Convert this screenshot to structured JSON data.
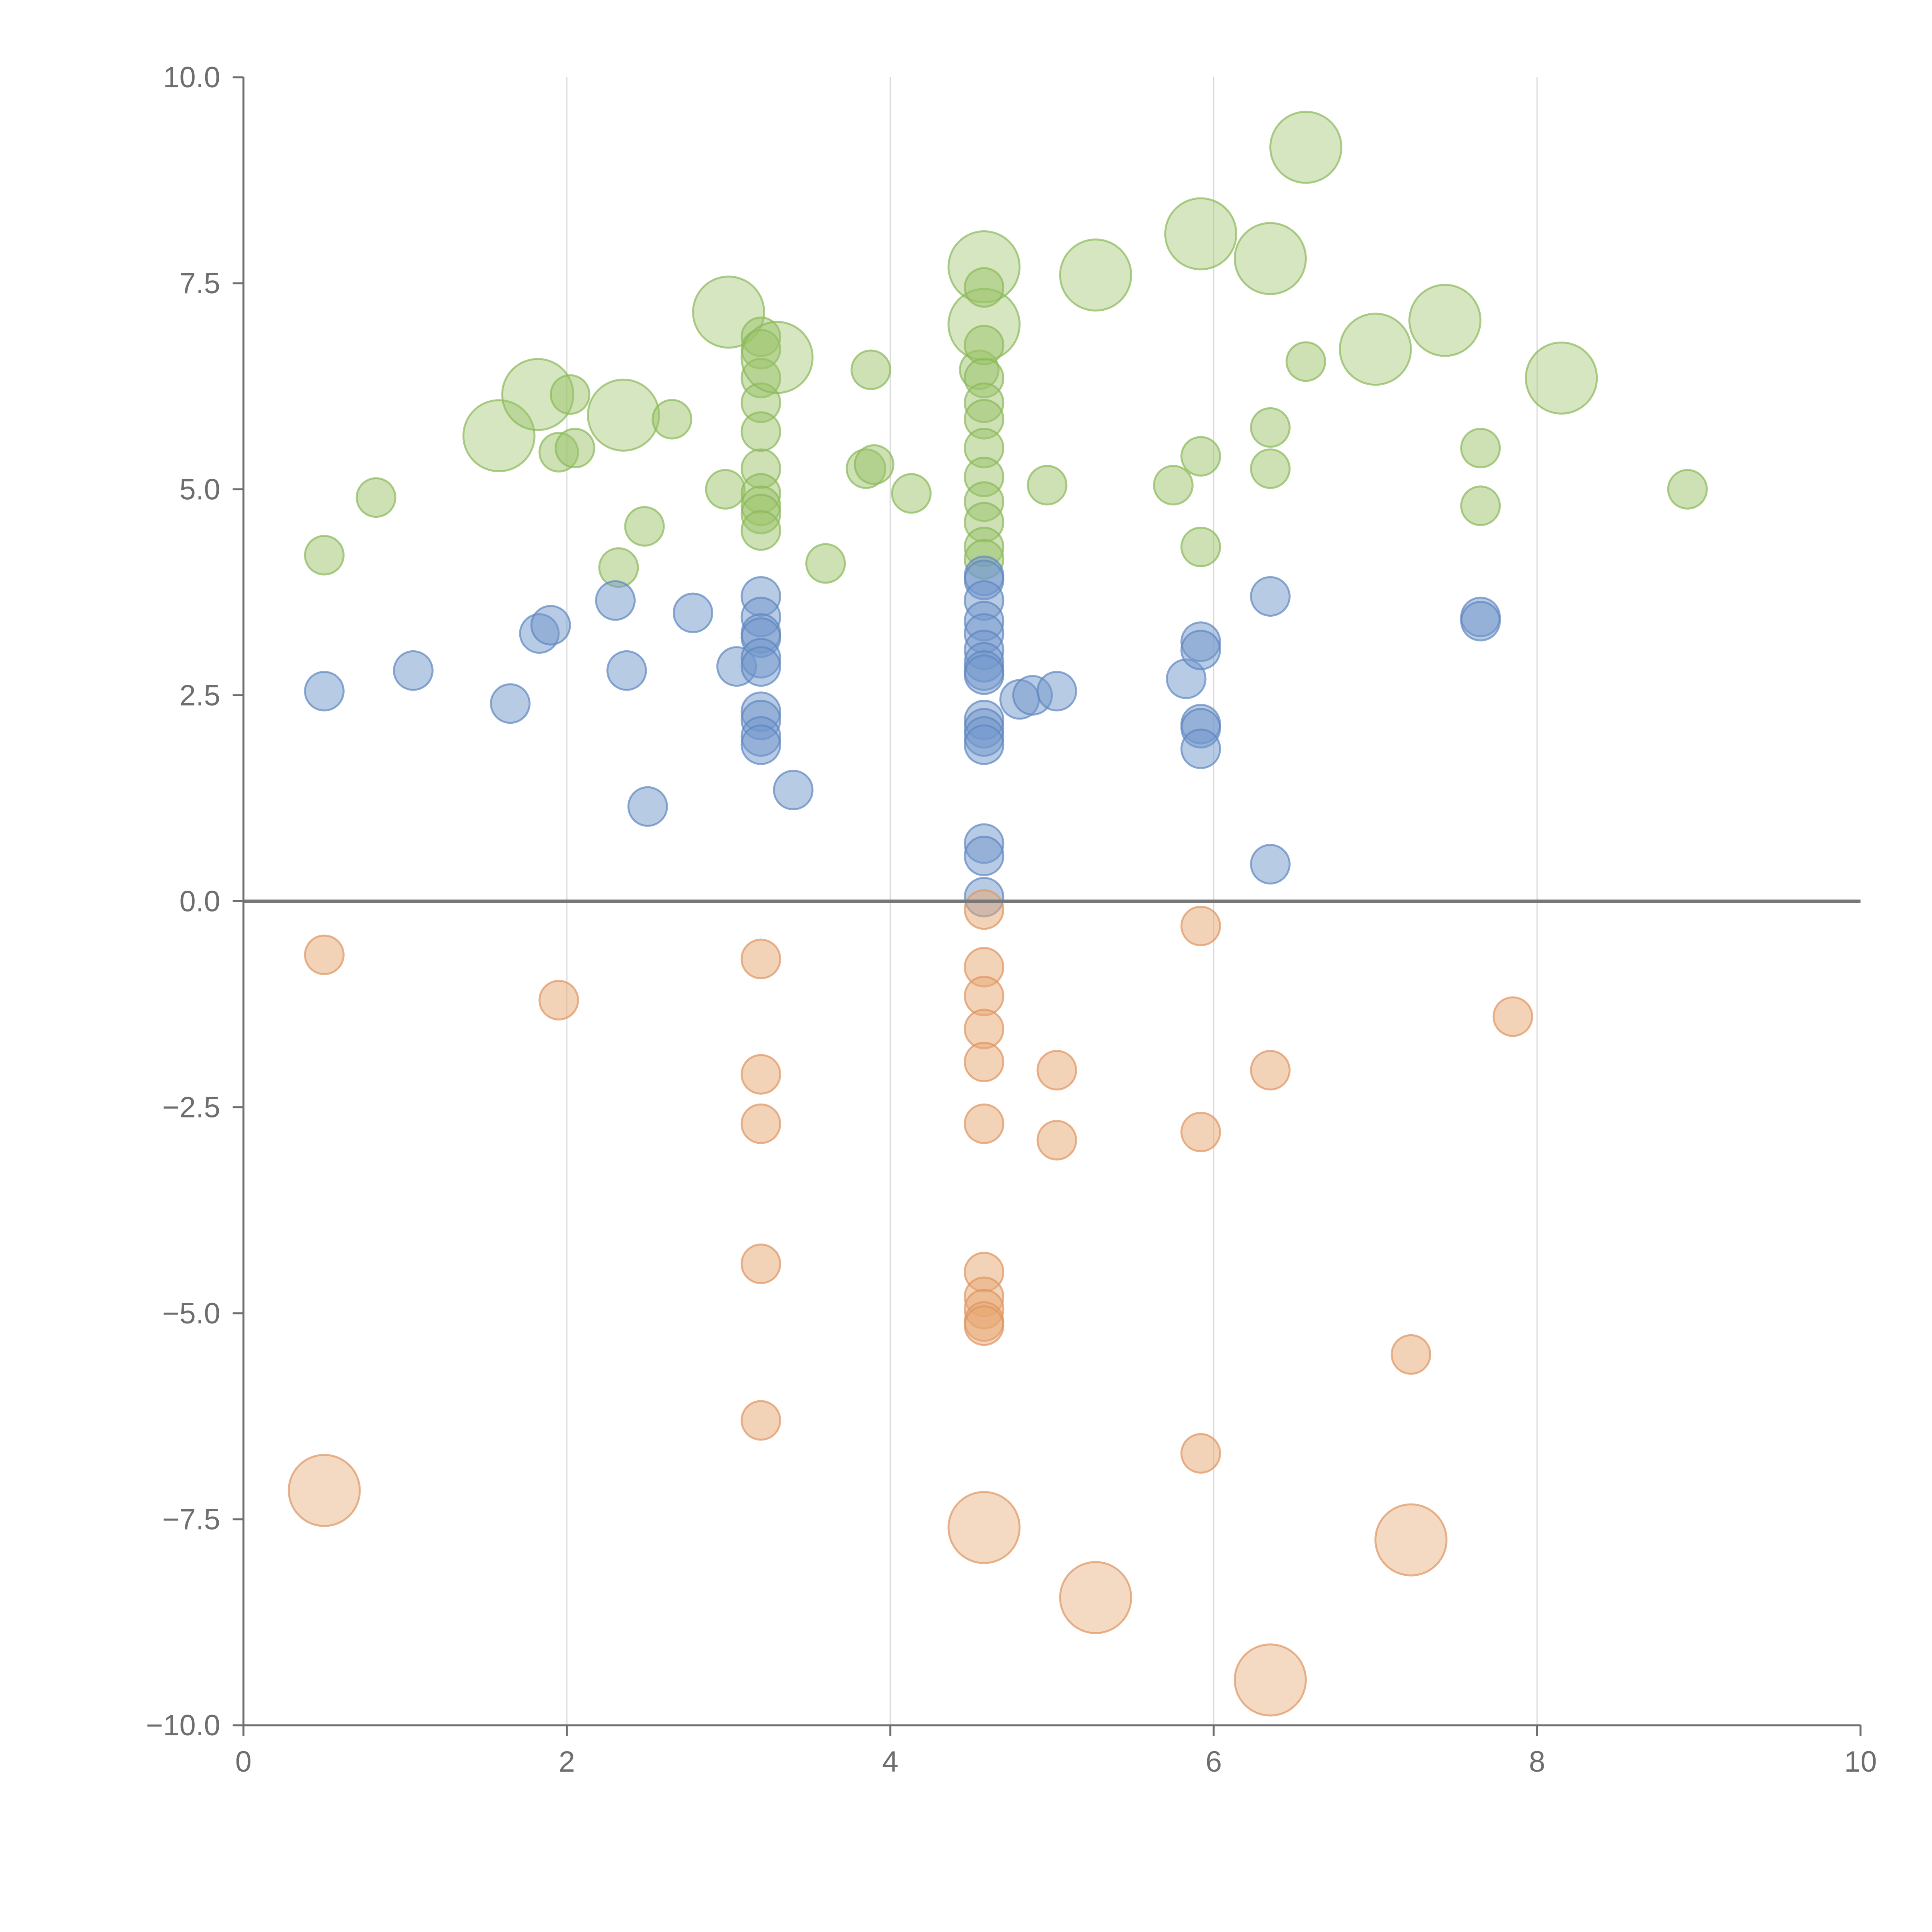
{
  "chart_data": {
    "type": "scatter",
    "variant": "bubble",
    "title": "",
    "xlabel": "",
    "ylabel": "",
    "xlim": [
      0,
      10
    ],
    "ylim": [
      -10,
      10
    ],
    "x_ticks": [
      0,
      2,
      4,
      6,
      8,
      10
    ],
    "y_ticks": [
      10,
      7.5,
      5,
      2.5,
      0,
      -2.5,
      -5,
      -7.5,
      -10
    ],
    "x_tick_labels": [
      "0",
      "2",
      "4",
      "6",
      "8",
      "10"
    ],
    "y_tick_labels": [
      "10.0",
      "7.5",
      "5.0",
      "2.5",
      "0.0",
      "−2.5",
      "−5.0",
      "−7.5",
      "−10.0"
    ],
    "grid": "vertical",
    "zero_line": true,
    "series": [
      {
        "name": "green",
        "color": "#9cc46a",
        "stroke": "#8ab85a",
        "points": [
          {
            "x": 0.5,
            "y": 4.2,
            "s": 1
          },
          {
            "x": 0.82,
            "y": 4.9,
            "s": 1
          },
          {
            "x": 1.58,
            "y": 5.65,
            "s": 3
          },
          {
            "x": 1.82,
            "y": 6.15,
            "s": 3
          },
          {
            "x": 1.95,
            "y": 5.45,
            "s": 1
          },
          {
            "x": 2.02,
            "y": 6.15,
            "s": 1
          },
          {
            "x": 2.05,
            "y": 5.5,
            "s": 1
          },
          {
            "x": 2.32,
            "y": 4.05,
            "s": 1
          },
          {
            "x": 2.35,
            "y": 5.9,
            "s": 3
          },
          {
            "x": 2.48,
            "y": 4.55,
            "s": 1
          },
          {
            "x": 2.65,
            "y": 5.85,
            "s": 1
          },
          {
            "x": 2.98,
            "y": 5.0,
            "s": 1
          },
          {
            "x": 3.0,
            "y": 7.15,
            "s": 3
          },
          {
            "x": 3.2,
            "y": 6.85,
            "s": 1
          },
          {
            "x": 3.2,
            "y": 6.7,
            "s": 1
          },
          {
            "x": 3.2,
            "y": 6.35,
            "s": 1
          },
          {
            "x": 3.2,
            "y": 6.05,
            "s": 1
          },
          {
            "x": 3.2,
            "y": 5.7,
            "s": 1
          },
          {
            "x": 3.2,
            "y": 5.25,
            "s": 1
          },
          {
            "x": 3.2,
            "y": 4.95,
            "s": 1
          },
          {
            "x": 3.2,
            "y": 4.8,
            "s": 1
          },
          {
            "x": 3.2,
            "y": 4.7,
            "s": 1
          },
          {
            "x": 3.2,
            "y": 4.5,
            "s": 1
          },
          {
            "x": 3.3,
            "y": 6.6,
            "s": 3
          },
          {
            "x": 3.6,
            "y": 4.1,
            "s": 1
          },
          {
            "x": 3.85,
            "y": 5.25,
            "s": 1
          },
          {
            "x": 3.88,
            "y": 6.45,
            "s": 1
          },
          {
            "x": 3.9,
            "y": 5.3,
            "s": 1
          },
          {
            "x": 4.13,
            "y": 4.95,
            "s": 1
          },
          {
            "x": 4.55,
            "y": 6.45,
            "s": 1
          },
          {
            "x": 4.58,
            "y": 7.7,
            "s": 3
          },
          {
            "x": 4.58,
            "y": 7.0,
            "s": 3
          },
          {
            "x": 4.58,
            "y": 7.45,
            "s": 1
          },
          {
            "x": 4.58,
            "y": 6.75,
            "s": 1
          },
          {
            "x": 4.58,
            "y": 6.35,
            "s": 1
          },
          {
            "x": 4.58,
            "y": 6.05,
            "s": 1
          },
          {
            "x": 4.58,
            "y": 5.85,
            "s": 1
          },
          {
            "x": 4.58,
            "y": 5.5,
            "s": 1
          },
          {
            "x": 4.58,
            "y": 5.15,
            "s": 1
          },
          {
            "x": 4.58,
            "y": 4.85,
            "s": 1
          },
          {
            "x": 4.58,
            "y": 4.6,
            "s": 1
          },
          {
            "x": 4.58,
            "y": 4.3,
            "s": 1
          },
          {
            "x": 4.58,
            "y": 4.15,
            "s": 1
          },
          {
            "x": 4.97,
            "y": 5.05,
            "s": 1
          },
          {
            "x": 5.27,
            "y": 7.6,
            "s": 3
          },
          {
            "x": 5.75,
            "y": 5.05,
            "s": 1
          },
          {
            "x": 5.92,
            "y": 8.1,
            "s": 3
          },
          {
            "x": 5.92,
            "y": 5.4,
            "s": 1
          },
          {
            "x": 5.92,
            "y": 4.3,
            "s": 1
          },
          {
            "x": 6.35,
            "y": 7.8,
            "s": 3
          },
          {
            "x": 6.35,
            "y": 5.75,
            "s": 1
          },
          {
            "x": 6.35,
            "y": 5.25,
            "s": 1
          },
          {
            "x": 6.57,
            "y": 9.15,
            "s": 3
          },
          {
            "x": 6.57,
            "y": 6.55,
            "s": 1
          },
          {
            "x": 7.0,
            "y": 6.7,
            "s": 3
          },
          {
            "x": 7.43,
            "y": 7.05,
            "s": 3
          },
          {
            "x": 7.65,
            "y": 5.5,
            "s": 1
          },
          {
            "x": 7.65,
            "y": 4.8,
            "s": 1
          },
          {
            "x": 8.15,
            "y": 6.35,
            "s": 3
          },
          {
            "x": 8.93,
            "y": 5.0,
            "s": 1
          }
        ]
      },
      {
        "name": "blue",
        "color": "#7297cc",
        "stroke": "#5f86c0",
        "points": [
          {
            "x": 0.5,
            "y": 2.55,
            "s": 1
          },
          {
            "x": 1.05,
            "y": 2.8,
            "s": 1
          },
          {
            "x": 1.65,
            "y": 2.4,
            "s": 1
          },
          {
            "x": 1.83,
            "y": 3.25,
            "s": 1
          },
          {
            "x": 1.9,
            "y": 3.35,
            "s": 1
          },
          {
            "x": 2.3,
            "y": 3.65,
            "s": 1
          },
          {
            "x": 2.37,
            "y": 2.8,
            "s": 1
          },
          {
            "x": 2.5,
            "y": 1.15,
            "s": 1
          },
          {
            "x": 2.78,
            "y": 3.5,
            "s": 1
          },
          {
            "x": 3.05,
            "y": 2.85,
            "s": 1
          },
          {
            "x": 3.2,
            "y": 3.7,
            "s": 1
          },
          {
            "x": 3.2,
            "y": 3.45,
            "s": 1
          },
          {
            "x": 3.2,
            "y": 3.25,
            "s": 1
          },
          {
            "x": 3.2,
            "y": 3.2,
            "s": 1
          },
          {
            "x": 3.2,
            "y": 2.95,
            "s": 1
          },
          {
            "x": 3.2,
            "y": 2.85,
            "s": 1
          },
          {
            "x": 3.2,
            "y": 2.3,
            "s": 1
          },
          {
            "x": 3.2,
            "y": 2.2,
            "s": 1
          },
          {
            "x": 3.2,
            "y": 2.0,
            "s": 1
          },
          {
            "x": 3.2,
            "y": 1.9,
            "s": 1
          },
          {
            "x": 3.4,
            "y": 1.35,
            "s": 1
          },
          {
            "x": 4.58,
            "y": 3.95,
            "s": 1
          },
          {
            "x": 4.58,
            "y": 3.9,
            "s": 1
          },
          {
            "x": 4.58,
            "y": 3.65,
            "s": 1
          },
          {
            "x": 4.58,
            "y": 3.4,
            "s": 1
          },
          {
            "x": 4.58,
            "y": 3.25,
            "s": 1
          },
          {
            "x": 4.58,
            "y": 3.05,
            "s": 1
          },
          {
            "x": 4.58,
            "y": 2.9,
            "s": 1
          },
          {
            "x": 4.58,
            "y": 2.8,
            "s": 1
          },
          {
            "x": 4.58,
            "y": 2.75,
            "s": 1
          },
          {
            "x": 4.58,
            "y": 2.2,
            "s": 1
          },
          {
            "x": 4.58,
            "y": 2.1,
            "s": 1
          },
          {
            "x": 4.58,
            "y": 2.0,
            "s": 1
          },
          {
            "x": 4.58,
            "y": 1.9,
            "s": 1
          },
          {
            "x": 4.58,
            "y": 0.7,
            "s": 1
          },
          {
            "x": 4.58,
            "y": 0.55,
            "s": 1
          },
          {
            "x": 4.58,
            "y": 0.05,
            "s": 1
          },
          {
            "x": 4.8,
            "y": 2.45,
            "s": 1
          },
          {
            "x": 4.88,
            "y": 2.5,
            "s": 1
          },
          {
            "x": 5.03,
            "y": 2.55,
            "s": 1
          },
          {
            "x": 5.83,
            "y": 2.7,
            "s": 1
          },
          {
            "x": 5.92,
            "y": 3.15,
            "s": 1
          },
          {
            "x": 5.92,
            "y": 3.05,
            "s": 1
          },
          {
            "x": 5.92,
            "y": 2.15,
            "s": 1
          },
          {
            "x": 5.92,
            "y": 2.1,
            "s": 1
          },
          {
            "x": 5.92,
            "y": 1.85,
            "s": 1
          },
          {
            "x": 6.35,
            "y": 3.7,
            "s": 1
          },
          {
            "x": 6.35,
            "y": 0.45,
            "s": 1
          },
          {
            "x": 7.65,
            "y": 3.45,
            "s": 1
          },
          {
            "x": 7.65,
            "y": 3.4,
            "s": 1
          }
        ]
      },
      {
        "name": "orange",
        "color": "#e8a771",
        "stroke": "#de9461",
        "points": [
          {
            "x": 0.5,
            "y": -0.65,
            "s": 1
          },
          {
            "x": 0.5,
            "y": -7.15,
            "s": 3
          },
          {
            "x": 1.95,
            "y": -1.2,
            "s": 1
          },
          {
            "x": 3.2,
            "y": -0.7,
            "s": 1
          },
          {
            "x": 3.2,
            "y": -2.1,
            "s": 1
          },
          {
            "x": 3.2,
            "y": -2.7,
            "s": 1
          },
          {
            "x": 3.2,
            "y": -4.4,
            "s": 1
          },
          {
            "x": 3.2,
            "y": -6.3,
            "s": 1
          },
          {
            "x": 4.58,
            "y": -0.1,
            "s": 1
          },
          {
            "x": 4.58,
            "y": -0.8,
            "s": 1
          },
          {
            "x": 4.58,
            "y": -1.15,
            "s": 1
          },
          {
            "x": 4.58,
            "y": -1.55,
            "s": 1
          },
          {
            "x": 4.58,
            "y": -1.95,
            "s": 1
          },
          {
            "x": 4.58,
            "y": -2.7,
            "s": 1
          },
          {
            "x": 4.58,
            "y": -4.5,
            "s": 1
          },
          {
            "x": 4.58,
            "y": -4.8,
            "s": 1
          },
          {
            "x": 4.58,
            "y": -4.95,
            "s": 1
          },
          {
            "x": 4.58,
            "y": -5.1,
            "s": 1
          },
          {
            "x": 4.58,
            "y": -5.15,
            "s": 1
          },
          {
            "x": 4.58,
            "y": -7.6,
            "s": 3
          },
          {
            "x": 5.03,
            "y": -2.05,
            "s": 1
          },
          {
            "x": 5.03,
            "y": -2.9,
            "s": 1
          },
          {
            "x": 5.27,
            "y": -8.45,
            "s": 3
          },
          {
            "x": 5.92,
            "y": -0.3,
            "s": 1
          },
          {
            "x": 5.92,
            "y": -2.8,
            "s": 1
          },
          {
            "x": 5.92,
            "y": -6.7,
            "s": 1
          },
          {
            "x": 6.35,
            "y": -2.05,
            "s": 1
          },
          {
            "x": 6.35,
            "y": -9.45,
            "s": 3
          },
          {
            "x": 7.22,
            "y": -5.5,
            "s": 1
          },
          {
            "x": 7.22,
            "y": -7.75,
            "s": 3
          },
          {
            "x": 7.85,
            "y": -1.4,
            "s": 1
          }
        ]
      }
    ]
  }
}
